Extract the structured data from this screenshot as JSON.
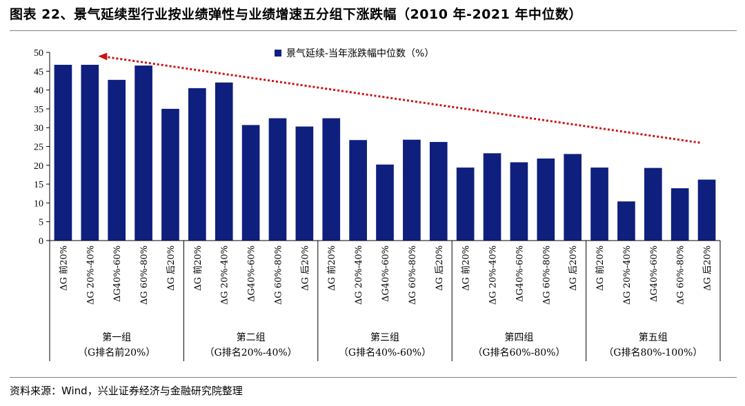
{
  "header": {
    "title": "图表 22、景气延续型行业按业绩弹性与业绩增速五分组下涨跌幅（2010 年-2021 年中位数）"
  },
  "footer": {
    "source": "资料来源：Wind，兴业证券经济与金融研究院整理"
  },
  "colors": {
    "bar": "#0f1f7e",
    "trend_arrow": "#cc1111",
    "axis": "#000000"
  },
  "chart_data": {
    "type": "bar",
    "legend": {
      "label": "景气延续-当年涨跌幅中位数（%）",
      "position": "top-right"
    },
    "ylim": [
      0,
      50
    ],
    "yticks": [
      "0",
      "5",
      "10",
      "15",
      "20",
      "25",
      "30",
      "35",
      "40",
      "45",
      "50"
    ],
    "grid": false,
    "categories": [
      "ΔG 前20%",
      "ΔG 20%-40%",
      "ΔG40%-60%",
      "ΔG 60%-80%",
      "ΔG 后20%",
      "ΔG 前20%",
      "ΔG 20%-40%",
      "ΔG40%-60%",
      "ΔG 60%-80%",
      "ΔG 后20%",
      "ΔG 前20%",
      "ΔG 20%-40%",
      "ΔG40%-60%",
      "ΔG 60%-80%",
      "ΔG 后20%",
      "ΔG 前20%",
      "ΔG 20%-40%",
      "ΔG40%-60%",
      "ΔG 60%-80%",
      "ΔG 后20%",
      "ΔG 前20%",
      "ΔG 20%-40%",
      "ΔG40%-60%",
      "ΔG 60%-80%",
      "ΔG 后20%"
    ],
    "values": [
      46.7,
      46.7,
      42.7,
      46.5,
      35.0,
      40.5,
      42.0,
      30.7,
      32.5,
      30.3,
      32.5,
      26.7,
      20.2,
      26.8,
      26.2,
      19.4,
      23.2,
      20.8,
      21.8,
      23.0,
      19.4,
      10.4,
      19.3,
      13.9,
      16.2
    ],
    "groups": [
      {
        "label": "第一组",
        "sublabel": "（G排名前20%）"
      },
      {
        "label": "第二组",
        "sublabel": "（G排名20%-40%）"
      },
      {
        "label": "第三组",
        "sublabel": "（G排名40%-60%）"
      },
      {
        "label": "第四组",
        "sublabel": "（G排名60%-80%）"
      },
      {
        "label": "第五组",
        "sublabel": "（G排名80%-100%）"
      }
    ],
    "trend_arrow": {
      "from_category_index": 24,
      "from_value": 26.0,
      "to_category_index": 1,
      "to_value": 49.0
    }
  }
}
